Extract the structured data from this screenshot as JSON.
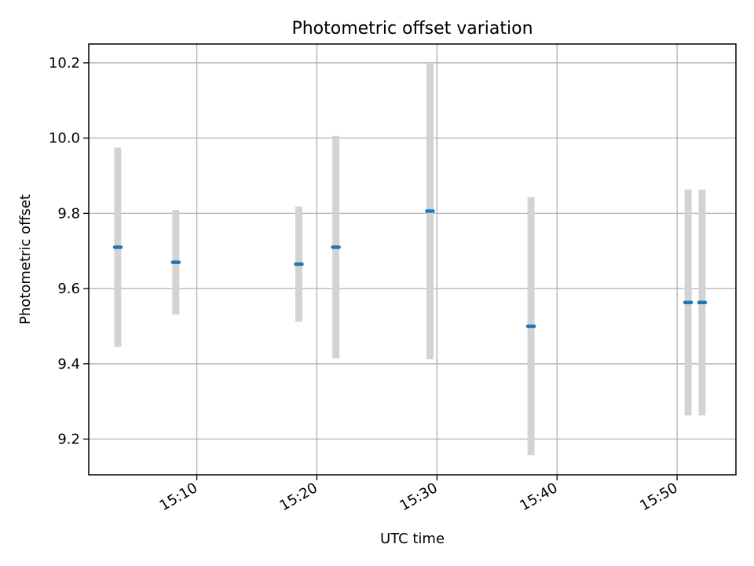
{
  "chart_data": {
    "type": "scatter",
    "title": "Photometric offset variation",
    "xlabel": "UTC time",
    "ylabel": "Photometric offset",
    "x_tick_labels": [
      "15:10",
      "15:20",
      "15:30",
      "15:40",
      "15:50"
    ],
    "x_ticks_minutes": [
      10,
      20,
      30,
      40,
      50
    ],
    "xlim_minutes": [
      1.0,
      54.9
    ],
    "y_tick_labels": [
      "9.2",
      "9.4",
      "9.6",
      "9.8",
      "10.0",
      "10.2"
    ],
    "y_ticks": [
      9.2,
      9.4,
      9.6,
      9.8,
      10.0,
      10.2
    ],
    "ylim": [
      9.105,
      10.25
    ],
    "grid": true,
    "series": [
      {
        "points": [
          {
            "time": "15:03:25",
            "y": 9.71,
            "err": 0.265
          },
          {
            "time": "15:08:15",
            "y": 9.67,
            "err": 0.139
          },
          {
            "time": "15:18:30",
            "y": 9.665,
            "err": 0.153
          },
          {
            "time": "15:21:35",
            "y": 9.71,
            "err": 0.296
          },
          {
            "time": "15:29:25",
            "y": 9.806,
            "err": 0.394
          },
          {
            "time": "15:37:50",
            "y": 9.5,
            "err": 0.343
          },
          {
            "time": "15:50:55",
            "y": 9.563,
            "err": 0.3
          },
          {
            "time": "15:52:05",
            "y": 9.563,
            "err": 0.3
          }
        ],
        "marker_color": "#1f77b4",
        "errorbar_color": "#d3d3d3"
      }
    ]
  }
}
